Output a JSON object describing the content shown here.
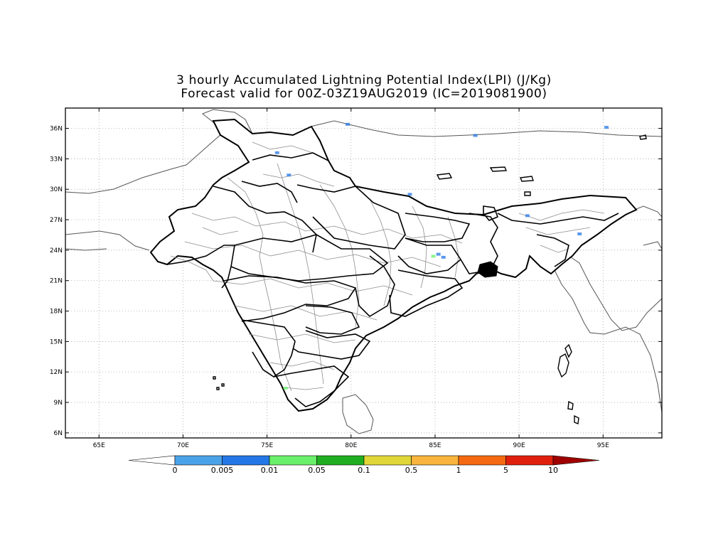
{
  "title": {
    "line1": "3 hourly Accumulated Lightning Potential Index(LPI) (J/Kg)",
    "line2": "Forecast valid for 00Z-03Z19AUG2019 (IC=2019081900)"
  },
  "map": {
    "lon_range": [
      63,
      98.5
    ],
    "lat_range": [
      5.5,
      38
    ],
    "lat_ticks": [
      {
        "value": 36,
        "label": "36N"
      },
      {
        "value": 33,
        "label": "33N"
      },
      {
        "value": 30,
        "label": "30N"
      },
      {
        "value": 27,
        "label": "27N"
      },
      {
        "value": 24,
        "label": "24N"
      },
      {
        "value": 21,
        "label": "21N"
      },
      {
        "value": 18,
        "label": "18N"
      },
      {
        "value": 15,
        "label": "15N"
      },
      {
        "value": 12,
        "label": "12N"
      },
      {
        "value": 9,
        "label": "9N"
      },
      {
        "value": 6,
        "label": "6N"
      }
    ],
    "lon_ticks": [
      {
        "value": 65,
        "label": "65E"
      },
      {
        "value": 70,
        "label": "70E"
      },
      {
        "value": 75,
        "label": "75E"
      },
      {
        "value": 80,
        "label": "80E"
      },
      {
        "value": 85,
        "label": "85E"
      },
      {
        "value": 90,
        "label": "90E"
      },
      {
        "value": 95,
        "label": "95E"
      }
    ],
    "grid": "dotted",
    "state_boundary_color": "#000000",
    "district_boundary_color": "#8c8c8c",
    "country_boundary_color": "#555555"
  },
  "lpi_cells": [
    {
      "lon": 85.2,
      "lat": 23.6,
      "level": "0.005"
    },
    {
      "lon": 84.9,
      "lat": 23.4,
      "level": "0.01"
    },
    {
      "lon": 85.5,
      "lat": 23.3,
      "level": "0.005"
    },
    {
      "lon": 76.1,
      "lat": 10.4,
      "level": "0.01"
    },
    {
      "lon": 76.3,
      "lat": 31.4,
      "level": "0.005"
    },
    {
      "lon": 75.6,
      "lat": 33.6,
      "level": "0.005"
    },
    {
      "lon": 90.5,
      "lat": 27.4,
      "level": "0.005"
    },
    {
      "lon": 93.6,
      "lat": 25.6,
      "level": "0.005"
    },
    {
      "lon": 95.2,
      "lat": 36.1,
      "level": "0.005"
    },
    {
      "lon": 79.8,
      "lat": 36.4,
      "level": "0.005"
    },
    {
      "lon": 83.5,
      "lat": 29.5,
      "level": "0.005"
    },
    {
      "lon": 87.4,
      "lat": 35.3,
      "level": "0.005"
    }
  ],
  "colorbar": {
    "labels": [
      "0",
      "0.005",
      "0.01",
      "0.05",
      "0.1",
      "0.5",
      "1",
      "5",
      "10"
    ],
    "colors": [
      "#ffffff",
      "#4aa3e8",
      "#2477e6",
      "#6af06a",
      "#1fae1f",
      "#e0d638",
      "#f8b43c",
      "#f56a10",
      "#e0200c",
      "#a00000"
    ]
  }
}
